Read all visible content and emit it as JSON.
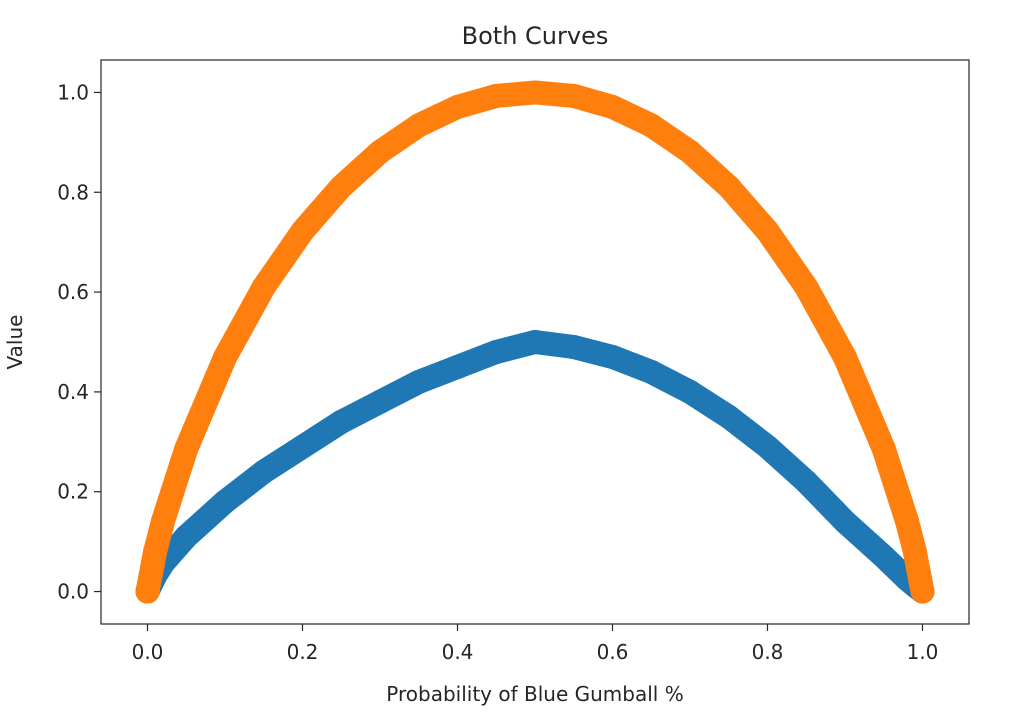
{
  "chart_data": {
    "type": "scatter",
    "title": "Both Curves",
    "xlabel": "Probability of Blue Gumball %",
    "ylabel": "Value",
    "xlim": [
      -0.06,
      1.06
    ],
    "ylim": [
      -0.065,
      1.065
    ],
    "grid": false,
    "legend": "none",
    "x_ticks": [
      {
        "value": 0.0,
        "label": "0.0"
      },
      {
        "value": 0.2,
        "label": "0.2"
      },
      {
        "value": 0.4,
        "label": "0.4"
      },
      {
        "value": 0.6,
        "label": "0.6"
      },
      {
        "value": 0.8,
        "label": "0.8"
      },
      {
        "value": 1.0,
        "label": "1.0"
      }
    ],
    "y_ticks": [
      {
        "value": 0.0,
        "label": "0.0"
      },
      {
        "value": 0.2,
        "label": "0.2"
      },
      {
        "value": 0.4,
        "label": "0.4"
      },
      {
        "value": 0.6,
        "label": "0.6"
      },
      {
        "value": 0.8,
        "label": "0.8"
      },
      {
        "value": 1.0,
        "label": "1.0"
      }
    ],
    "x": [
      0.0,
      0.01,
      0.02,
      0.05,
      0.1,
      0.15,
      0.2,
      0.25,
      0.3,
      0.35,
      0.4,
      0.45,
      0.5,
      0.55,
      0.6,
      0.65,
      0.7,
      0.75,
      0.8,
      0.85,
      0.9,
      0.95,
      0.98,
      0.99,
      1.0
    ],
    "series": [
      {
        "color": "#1f77b4",
        "values": [
          0.0,
          0.032,
          0.057,
          0.11,
          0.18,
          0.24,
          0.29,
          0.34,
          0.38,
          0.42,
          0.45,
          0.48,
          0.5,
          0.49,
          0.47,
          0.44,
          0.4,
          0.35,
          0.29,
          0.22,
          0.14,
          0.07,
          0.025,
          0.012,
          0.0
        ]
      },
      {
        "color": "#ff7f0e",
        "values": [
          0.0,
          0.081,
          0.141,
          0.286,
          0.469,
          0.61,
          0.722,
          0.811,
          0.881,
          0.934,
          0.971,
          0.993,
          1.0,
          0.993,
          0.971,
          0.934,
          0.881,
          0.811,
          0.722,
          0.61,
          0.469,
          0.286,
          0.141,
          0.081,
          0.0
        ]
      }
    ]
  }
}
